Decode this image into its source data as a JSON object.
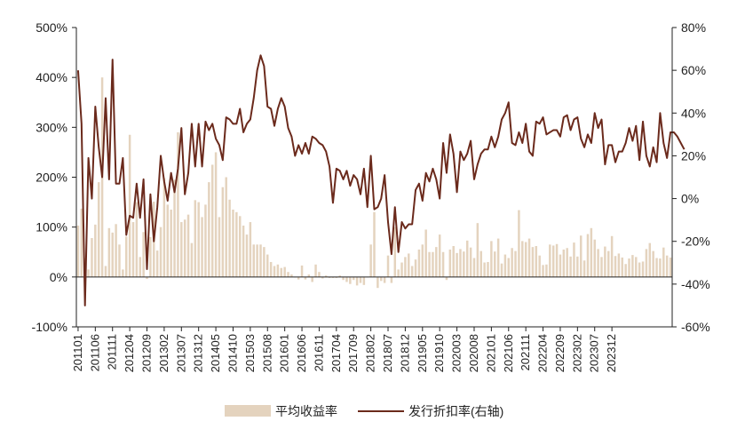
{
  "chart_data": {
    "type": "bar+line",
    "title": "",
    "xlabel": "",
    "grid": false,
    "legend_position": "bottom",
    "colors": {
      "bar": "#E4D3BE",
      "line": "#6B2A1C"
    },
    "left_axis": {
      "ticks": [
        "-100%",
        "0%",
        "100%",
        "200%",
        "300%",
        "400%",
        "500%"
      ],
      "ylim": [
        -100,
        500
      ]
    },
    "right_axis": {
      "ticks": [
        "-60%",
        "-40%",
        "-20%",
        "0%",
        "20%",
        "40%",
        "60%",
        "80%"
      ],
      "ylim": [
        -60,
        80
      ]
    },
    "x_tick_labels": [
      "201101",
      "201106",
      "201111",
      "201204",
      "201209",
      "201302",
      "201307",
      "201312",
      "201405",
      "201410",
      "201503",
      "201508",
      "201601",
      "201606",
      "201611",
      "201704",
      "201709",
      "201802",
      "201807",
      "201812",
      "201905",
      "201910",
      "202003",
      "202008",
      "202101",
      "202106",
      "202111",
      "202204",
      "202209",
      "202302",
      "202307",
      "202312"
    ],
    "start_month": "2011-01",
    "series": [
      {
        "name": "平均收益率",
        "type": "bar",
        "axis": "left",
        "values": [
          103,
          137,
          38,
          15,
          78,
          105,
          190,
          400,
          22,
          98,
          89,
          106,
          65,
          15,
          81,
          285,
          110,
          150,
          40,
          90,
          -4,
          80,
          151,
          53,
          100,
          198,
          145,
          135,
          195,
          290,
          110,
          115,
          125,
          68,
          154,
          150,
          120,
          145,
          190,
          225,
          250,
          120,
          180,
          200,
          155,
          135,
          130,
          122,
          103,
          85,
          110,
          65,
          65,
          65,
          60,
          45,
          30,
          22,
          25,
          18,
          20,
          10,
          5,
          0,
          -5,
          23,
          -5,
          5,
          -10,
          25,
          10,
          -3,
          3,
          -2,
          -2,
          -2,
          3,
          -6,
          -10,
          -14,
          -6,
          -17,
          -12,
          -16,
          0,
          65,
          130,
          -22,
          -8,
          -12,
          43,
          -12,
          100,
          15,
          29,
          40,
          47,
          22,
          35,
          55,
          65,
          95,
          50,
          50,
          60,
          85,
          50,
          -6,
          55,
          62,
          48,
          56,
          51,
          73,
          59,
          38,
          108,
          52,
          29,
          30,
          72,
          51,
          77,
          27,
          45,
          38,
          58,
          52,
          134,
          72,
          70,
          77,
          60,
          62,
          43,
          24,
          25,
          65,
          63,
          66,
          45,
          55,
          58,
          41,
          69,
          41,
          83,
          33,
          86,
          98,
          75,
          56,
          40,
          61,
          52,
          82,
          42,
          47,
          39,
          26,
          37,
          44,
          40,
          29,
          31,
          56,
          68,
          52,
          38,
          37,
          59,
          43,
          39
        ]
      },
      {
        "name": "发行折扣率(右轴)",
        "type": "line",
        "axis": "right",
        "values": [
          60,
          35,
          -50,
          19,
          0,
          43,
          24,
          10,
          47,
          9,
          65,
          7,
          7,
          19,
          -17,
          -8,
          -9,
          7,
          -9,
          9,
          -33,
          2,
          -20,
          -4,
          20,
          8,
          -1,
          12,
          3,
          14,
          33,
          2,
          12,
          35,
          15,
          35,
          15,
          36,
          32,
          35,
          28,
          25,
          18,
          38,
          37,
          35,
          35,
          42,
          31,
          35,
          37,
          47,
          60,
          67,
          62,
          43,
          42,
          34,
          42,
          47,
          43,
          33,
          29,
          20,
          25,
          21,
          26,
          21,
          29,
          28,
          26,
          25,
          22,
          15,
          -2,
          14,
          13,
          9,
          13,
          6,
          11,
          9,
          2,
          14,
          -4,
          20,
          -5,
          -4,
          0,
          11,
          -11,
          -26,
          -4,
          -25,
          -11,
          -14,
          -12,
          -12,
          4,
          7,
          -1,
          12,
          8,
          14,
          9,
          0,
          26,
          12,
          30,
          21,
          3,
          22,
          18,
          21,
          27,
          9,
          16,
          21,
          23,
          23,
          29,
          24,
          29,
          37,
          40,
          45,
          26,
          25,
          31,
          26,
          35,
          22,
          20,
          36,
          35,
          38,
          30,
          31,
          32,
          32,
          29,
          38,
          39,
          32,
          37,
          38,
          28,
          24,
          30,
          26,
          40,
          33,
          37,
          16,
          25,
          25,
          17,
          22,
          22,
          26,
          33,
          27,
          34,
          18,
          36,
          20,
          15,
          24,
          17,
          40,
          26,
          19,
          31,
          31,
          29,
          26,
          23
        ]
      }
    ]
  }
}
